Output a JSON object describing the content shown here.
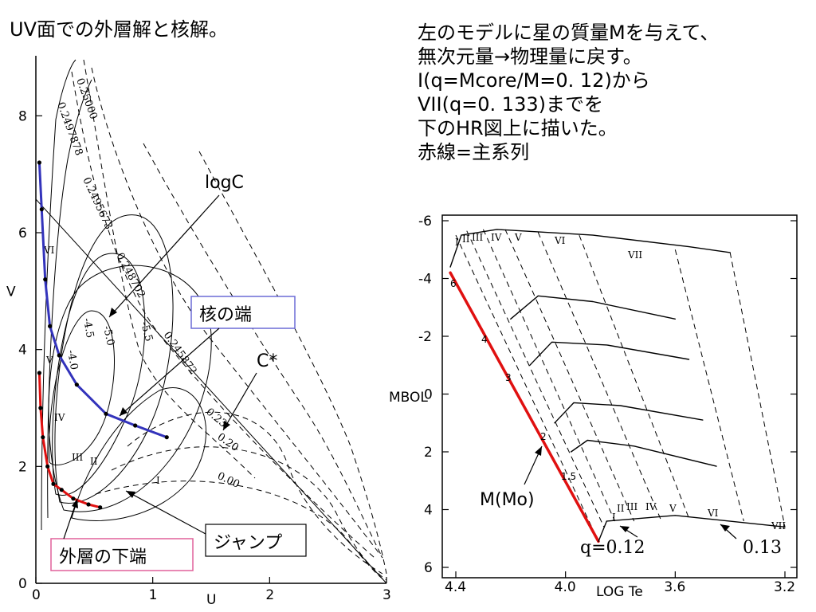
{
  "slide": {
    "title": "UV面での外層解と核解。",
    "notes": [
      "左のモデルに星の質量Mを与えて、",
      "無次元量→物理量に戻す。",
      "I(q=Mcore/M=0. 12)から",
      "VII(q=0. 133)までを",
      "下のHR図上に描いた。",
      "赤線=主系列"
    ],
    "colors": {
      "core_curve": "#3333bb",
      "envelope_curve": "#e01010",
      "main_sequence": "#e01010",
      "frame": "#000000",
      "callout_box_blue": "#6b6bd6",
      "callout_box_pink": "#e0609a"
    }
  },
  "chart_data": [
    {
      "type": "line",
      "xlabel": "U",
      "ylabel": "V",
      "xlim": [
        0,
        3
      ],
      "ylim": [
        0,
        9
      ],
      "x_ticks": [
        "0",
        "1",
        "2",
        "3"
      ],
      "y_ticks": [
        "0",
        "2",
        "4",
        "6",
        "8"
      ],
      "series": [
        {
          "role": "core_solution",
          "points": [
            [
              0.03,
              7.2
            ],
            [
              0.05,
              6.4
            ],
            [
              0.08,
              5.2
            ],
            [
              0.12,
              4.4
            ],
            [
              0.2,
              3.9
            ],
            [
              0.35,
              3.4
            ],
            [
              0.6,
              2.9
            ],
            [
              0.85,
              2.7
            ],
            [
              1.12,
              2.5
            ]
          ]
        },
        {
          "role": "envelope_solution",
          "points": [
            [
              0.03,
              3.6
            ],
            [
              0.04,
              3.0
            ],
            [
              0.06,
              2.5
            ],
            [
              0.1,
              2.0
            ],
            [
              0.15,
              1.7
            ],
            [
              0.22,
              1.6
            ],
            [
              0.32,
              1.45
            ],
            [
              0.45,
              1.35
            ],
            [
              0.55,
              1.3
            ]
          ]
        }
      ],
      "contour_labels": [
        "0.25000",
        "0.2497878",
        "0.2495673",
        "0.248702",
        "0.245872",
        "0.23",
        "0.20",
        "0.00",
        "-4.0",
        "-4.5",
        "-5.0",
        "-5.5"
      ],
      "roman_labels": [
        "I",
        "II",
        "III",
        "IV",
        "V",
        "VI"
      ],
      "annotations": [
        {
          "text": "logC"
        },
        {
          "text": "核の端",
          "boxed": true
        },
        {
          "text": "C*"
        },
        {
          "text": "ジャンプ",
          "boxed": true
        },
        {
          "text": "外層の下端",
          "boxed": true
        }
      ]
    },
    {
      "type": "line",
      "xlabel": "LOG Te",
      "ylabel": "MBOL",
      "xlim": [
        4.4,
        3.2
      ],
      "ylim": [
        6,
        -6
      ],
      "x_ticks": [
        "4.4",
        "4.0",
        "3.6",
        "3.2"
      ],
      "y_ticks": [
        "-6",
        "-4",
        "-2",
        "0",
        "2",
        "4",
        "6"
      ],
      "series": [
        {
          "role": "main_sequence",
          "points": [
            [
              4.42,
              -4.2
            ],
            [
              3.88,
              5.1
            ]
          ]
        },
        {
          "role": "q_tracks",
          "tracks": [
            [
              [
                4.42,
                -4.4
              ],
              [
                4.38,
                -5.5
              ],
              [
                4.25,
                -5.7
              ],
              [
                3.9,
                -5.5
              ],
              [
                3.55,
                -5.1
              ],
              [
                3.4,
                -4.9
              ]
            ],
            [
              [
                4.2,
                -2.6
              ],
              [
                4.1,
                -3.4
              ],
              [
                3.9,
                -3.2
              ],
              [
                3.6,
                -2.6
              ]
            ],
            [
              [
                4.13,
                -1.0
              ],
              [
                4.05,
                -1.8
              ],
              [
                3.85,
                -1.7
              ],
              [
                3.55,
                -1.2
              ]
            ],
            [
              [
                4.04,
                1.0
              ],
              [
                3.97,
                0.3
              ],
              [
                3.8,
                0.4
              ],
              [
                3.5,
                0.9
              ]
            ],
            [
              [
                3.98,
                2.0
              ],
              [
                3.92,
                1.6
              ],
              [
                3.75,
                1.8
              ],
              [
                3.45,
                2.5
              ]
            ],
            [
              [
                3.88,
                5.1
              ],
              [
                3.85,
                4.4
              ],
              [
                3.6,
                4.2
              ],
              [
                3.2,
                4.6
              ]
            ]
          ]
        }
      ],
      "mass_labels": [
        "6",
        "4",
        "3",
        "2",
        "1.5"
      ],
      "roman_labels_top": [
        "I",
        "II",
        "III",
        "IV",
        "V",
        "VI",
        "VII"
      ],
      "roman_labels_bottom": [
        "I",
        "II",
        "III",
        "IV",
        "V",
        "VI",
        "VII"
      ],
      "annotations": [
        {
          "text": "M(Mo)"
        },
        {
          "text": "q=0.12"
        },
        {
          "text": "0.13"
        }
      ]
    }
  ]
}
